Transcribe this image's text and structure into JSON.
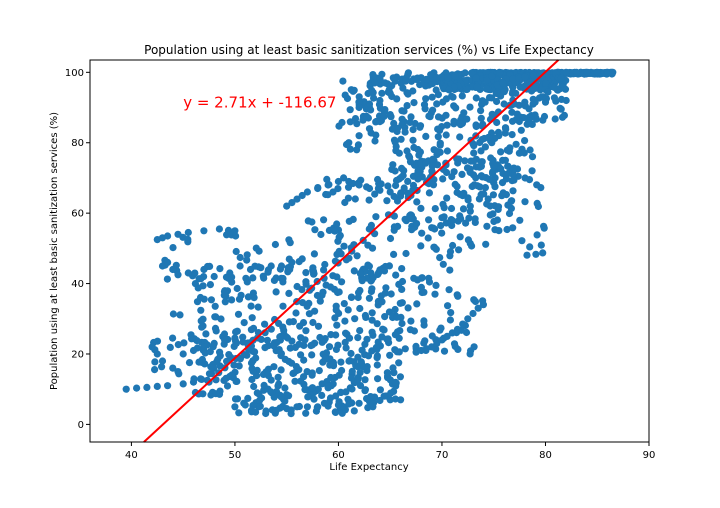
{
  "chart_data": {
    "type": "scatter",
    "title": "Population using at least basic sanitization services (%) vs Life Expectancy",
    "xlabel": "Life Expectancy",
    "ylabel": "Population using at least basic sanitization services (%)",
    "xlim": [
      36,
      90
    ],
    "ylim": [
      -5,
      103.5
    ],
    "xticks": [
      40,
      50,
      60,
      70,
      80,
      90
    ],
    "yticks": [
      0,
      20,
      40,
      60,
      80,
      100
    ],
    "grid": false,
    "legend": "none",
    "colors": {
      "points": "#1f77b4",
      "regression": "#ff0000"
    },
    "regression": {
      "slope": 2.71,
      "intercept": -116.67,
      "equation": "y = 2.71x + -116.67",
      "label_x": 45,
      "label_y": 90
    },
    "clusters": [
      {
        "x": [
          73,
          86.5
        ],
        "y": [
          99.5,
          100
        ],
        "n": 220
      },
      {
        "x": [
          70,
          82
        ],
        "y": [
          95,
          100
        ],
        "n": 220
      },
      {
        "x": [
          63,
          72
        ],
        "y": [
          96,
          100
        ],
        "n": 50
      },
      {
        "x": [
          62,
          82
        ],
        "y": [
          85,
          96
        ],
        "n": 120
      },
      {
        "x": [
          65,
          79
        ],
        "y": [
          70,
          88
        ],
        "n": 150
      },
      {
        "x": [
          66,
          77
        ],
        "y": [
          55,
          75
        ],
        "n": 110
      },
      {
        "x": [
          58,
          67
        ],
        "y": [
          63,
          70
        ],
        "n": 30
      },
      {
        "x": [
          55,
          72
        ],
        "y": [
          40,
          60
        ],
        "n": 110
      },
      {
        "x": [
          43,
          55
        ],
        "y": [
          40,
          56
        ],
        "n": 30
      },
      {
        "x": [
          46,
          66
        ],
        "y": [
          22,
          45
        ],
        "n": 170
      },
      {
        "x": [
          46,
          66
        ],
        "y": [
          8,
          25
        ],
        "n": 230
      },
      {
        "x": [
          50,
          64
        ],
        "y": [
          3,
          8
        ],
        "n": 50
      },
      {
        "x": [
          63,
          74
        ],
        "y": [
          20,
          40
        ],
        "n": 60
      },
      {
        "x": [
          42,
          52
        ],
        "y": [
          12,
          32
        ],
        "n": 40
      },
      {
        "x": [
          60,
          66
        ],
        "y": [
          78,
          98
        ],
        "n": 30
      },
      {
        "x": [
          72,
          80
        ],
        "y": [
          48,
          70
        ],
        "n": 40
      }
    ],
    "points": [
      {
        "x": 39.5,
        "y": 10
      },
      {
        "x": 40.5,
        "y": 10.3
      },
      {
        "x": 41.5,
        "y": 10.5
      },
      {
        "x": 42.5,
        "y": 10.8
      },
      {
        "x": 43.5,
        "y": 11
      },
      {
        "x": 45,
        "y": 11.5
      },
      {
        "x": 46,
        "y": 12
      },
      {
        "x": 47.5,
        "y": 12
      },
      {
        "x": 42.5,
        "y": 52.5
      },
      {
        "x": 43,
        "y": 53
      },
      {
        "x": 43.5,
        "y": 53.5
      },
      {
        "x": 44.5,
        "y": 54
      },
      {
        "x": 45.5,
        "y": 54.5
      },
      {
        "x": 47,
        "y": 55
      },
      {
        "x": 48.5,
        "y": 55.5
      },
      {
        "x": 50,
        "y": 55
      },
      {
        "x": 43,
        "y": 45
      },
      {
        "x": 43.5,
        "y": 46
      },
      {
        "x": 44,
        "y": 44
      },
      {
        "x": 44.5,
        "y": 42.5
      },
      {
        "x": 45.5,
        "y": 43
      },
      {
        "x": 47,
        "y": 44
      },
      {
        "x": 48,
        "y": 42
      },
      {
        "x": 49.5,
        "y": 43
      },
      {
        "x": 50.5,
        "y": 45
      },
      {
        "x": 51.5,
        "y": 44
      },
      {
        "x": 52.5,
        "y": 44.5
      },
      {
        "x": 53.5,
        "y": 45
      },
      {
        "x": 54.5,
        "y": 45
      },
      {
        "x": 55.5,
        "y": 46
      },
      {
        "x": 56.5,
        "y": 47
      },
      {
        "x": 42,
        "y": 22
      },
      {
        "x": 42.5,
        "y": 20
      },
      {
        "x": 43,
        "y": 18
      },
      {
        "x": 44,
        "y": 16
      },
      {
        "x": 44.5,
        "y": 15
      },
      {
        "x": 45,
        "y": 20
      },
      {
        "x": 46,
        "y": 21
      },
      {
        "x": 47,
        "y": 22
      },
      {
        "x": 48,
        "y": 23
      },
      {
        "x": 49,
        "y": 24
      },
      {
        "x": 50,
        "y": 24.5
      },
      {
        "x": 50,
        "y": 5
      },
      {
        "x": 51,
        "y": 5.5
      },
      {
        "x": 52,
        "y": 3.5
      },
      {
        "x": 53,
        "y": 3.8
      },
      {
        "x": 54,
        "y": 4
      },
      {
        "x": 55,
        "y": 4.5
      },
      {
        "x": 56,
        "y": 5
      },
      {
        "x": 57,
        "y": 5
      },
      {
        "x": 58,
        "y": 5
      },
      {
        "x": 59,
        "y": 5.2
      },
      {
        "x": 60,
        "y": 5.5
      },
      {
        "x": 61,
        "y": 5.8
      },
      {
        "x": 62,
        "y": 6
      },
      {
        "x": 63,
        "y": 6.5
      },
      {
        "x": 64,
        "y": 6.8
      },
      {
        "x": 65,
        "y": 7
      },
      {
        "x": 65.5,
        "y": 7.2
      },
      {
        "x": 66,
        "y": 7
      },
      {
        "x": 55,
        "y": 62
      },
      {
        "x": 55.5,
        "y": 63
      },
      {
        "x": 56,
        "y": 64
      },
      {
        "x": 56.5,
        "y": 65
      },
      {
        "x": 57,
        "y": 66
      },
      {
        "x": 58,
        "y": 67
      },
      {
        "x": 59,
        "y": 68
      },
      {
        "x": 60,
        "y": 69
      },
      {
        "x": 60.5,
        "y": 70
      },
      {
        "x": 61,
        "y": 69
      },
      {
        "x": 62,
        "y": 68
      },
      {
        "x": 63,
        "y": 67
      },
      {
        "x": 64,
        "y": 66.5
      },
      {
        "x": 65,
        "y": 66
      },
      {
        "x": 66,
        "y": 65.5
      },
      {
        "x": 67,
        "y": 65
      },
      {
        "x": 67.5,
        "y": 20.5
      },
      {
        "x": 68,
        "y": 21
      },
      {
        "x": 68.5,
        "y": 21.5
      },
      {
        "x": 69,
        "y": 22
      },
      {
        "x": 69.5,
        "y": 23
      },
      {
        "x": 70,
        "y": 24
      },
      {
        "x": 70.5,
        "y": 25
      },
      {
        "x": 71,
        "y": 26
      },
      {
        "x": 71.5,
        "y": 27
      },
      {
        "x": 72,
        "y": 28.5
      },
      {
        "x": 72.5,
        "y": 30
      },
      {
        "x": 73,
        "y": 31.5
      },
      {
        "x": 73.5,
        "y": 33
      },
      {
        "x": 74,
        "y": 34
      },
      {
        "x": 61,
        "y": 80
      },
      {
        "x": 62,
        "y": 82
      },
      {
        "x": 63,
        "y": 84
      },
      {
        "x": 64,
        "y": 86
      },
      {
        "x": 65,
        "y": 88
      },
      {
        "x": 62,
        "y": 90
      },
      {
        "x": 63,
        "y": 91
      },
      {
        "x": 64,
        "y": 92
      },
      {
        "x": 65,
        "y": 94
      },
      {
        "x": 63.5,
        "y": 97
      },
      {
        "x": 64.5,
        "y": 97
      },
      {
        "x": 65.5,
        "y": 97.5
      },
      {
        "x": 66.5,
        "y": 97.5
      },
      {
        "x": 67.5,
        "y": 98
      },
      {
        "x": 68.5,
        "y": 98
      },
      {
        "x": 69.5,
        "y": 98.5
      },
      {
        "x": 76,
        "y": 91
      },
      {
        "x": 77,
        "y": 91
      },
      {
        "x": 78,
        "y": 91.5
      },
      {
        "x": 79,
        "y": 91.5
      },
      {
        "x": 80,
        "y": 91.5
      },
      {
        "x": 81,
        "y": 91.8
      },
      {
        "x": 82,
        "y": 92
      },
      {
        "x": 82,
        "y": 100
      },
      {
        "x": 83,
        "y": 100
      },
      {
        "x": 84,
        "y": 100
      },
      {
        "x": 85,
        "y": 100
      },
      {
        "x": 86,
        "y": 100
      },
      {
        "x": 86.5,
        "y": 100
      }
    ]
  }
}
